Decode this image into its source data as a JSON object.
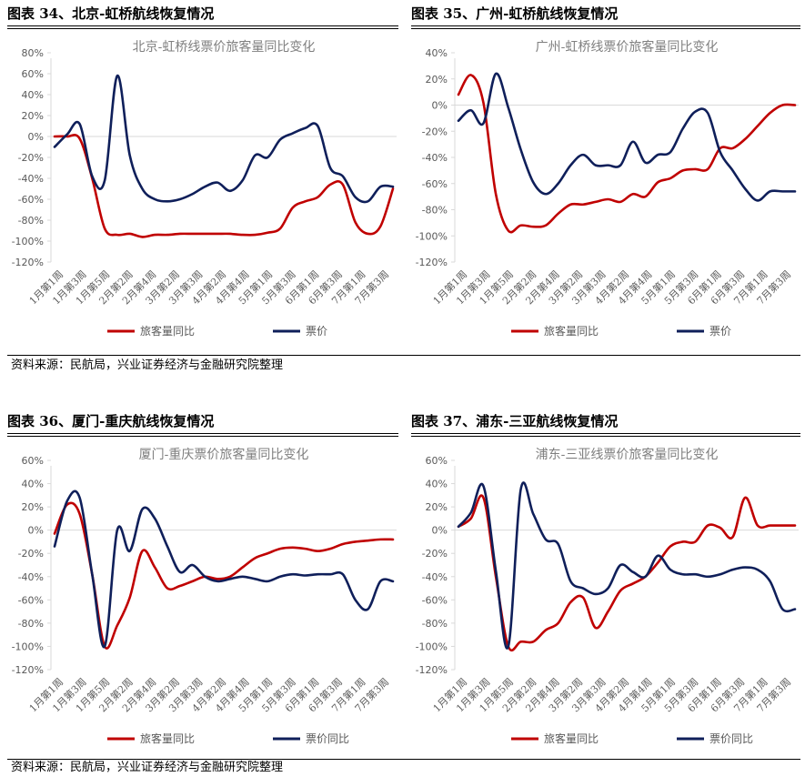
{
  "top_source": "资料来源：民航局，兴业证券经济与金融研究院整理",
  "bottom_source": "资料来源：民航局，兴业证券经济与金融研究院整理",
  "colors": {
    "passenger": "#c00000",
    "price": "#0f1f5a",
    "grid_axis": "#d9d9d9",
    "text": "#595959"
  },
  "panels": [
    {
      "header": "图表 34、北京-虹桥航线恢复情况",
      "legend_labels": [
        "旅客量同比",
        "票价"
      ],
      "chart_data": {
        "type": "line",
        "title": "北京-虹桥线票价旅客量同比变化",
        "categories": [
          "1月第1周",
          "1月第2周",
          "1月第3周",
          "1月第4周",
          "1月第5周",
          "2月第1周",
          "2月第2周",
          "2月第3周",
          "2月第4周",
          "3月第1周",
          "3月第2周",
          "3月第3周",
          "3月第4周",
          "4月第1周",
          "4月第2周",
          "4月第3周",
          "4月第4周",
          "5月第1周",
          "5月第2周",
          "5月第3周",
          "5月第4周",
          "6月第1周",
          "6月第2周",
          "6月第3周",
          "6月第4周",
          "7月第1周",
          "7月第2周",
          "7月第3周"
        ],
        "tick_labels": [
          "1月第1周",
          "1月第3周",
          "1月第5周",
          "2月第2周",
          "2月第4周",
          "3月第2周",
          "3月第3周",
          "4月第2周",
          "4月第4周",
          "5月第1周",
          "5月第3周",
          "6月第1周",
          "6月第3周",
          "7月第1周",
          "7月第3周"
        ],
        "ylim": [
          -120,
          80
        ],
        "yticks": [
          80,
          60,
          40,
          20,
          0,
          -20,
          -40,
          -60,
          -80,
          -100,
          -120
        ],
        "series": [
          {
            "name": "旅客量同比",
            "values": [
              0,
              0,
              -2,
              -40,
              -88,
              -94,
              -93,
              -96,
              -94,
              -94,
              -93,
              -93,
              -93,
              -93,
              -93,
              -94,
              -94,
              -92,
              -88,
              -68,
              -62,
              -58,
              -46,
              -46,
              -82,
              -93,
              -86,
              -50
            ]
          },
          {
            "name": "票价",
            "values": [
              -10,
              2,
              12,
              -38,
              -42,
              58,
              -18,
              -50,
              -60,
              -62,
              -60,
              -55,
              -48,
              -44,
              -52,
              -42,
              -18,
              -20,
              -3,
              3,
              8,
              10,
              -30,
              -38,
              -58,
              -62,
              -48,
              -48
            ]
          }
        ]
      }
    },
    {
      "header": "图表 35、广州-虹桥航线恢复情况",
      "legend_labels": [
        "旅客量同比",
        "票价"
      ],
      "chart_data": {
        "type": "line",
        "title": "广州-虹桥线票价旅客量同比变化",
        "categories": [
          "1月第1周",
          "1月第2周",
          "1月第3周",
          "1月第4周",
          "1月第5周",
          "2月第1周",
          "2月第2周",
          "2月第3周",
          "2月第4周",
          "3月第1周",
          "3月第2周",
          "3月第3周",
          "3月第4周",
          "4月第1周",
          "4月第2周",
          "4月第3周",
          "4月第4周",
          "5月第1周",
          "5月第2周",
          "5月第3周",
          "5月第4周",
          "6月第1周",
          "6月第2周",
          "6月第3周",
          "6月第4周",
          "7月第1周",
          "7月第2周",
          "7月第3周"
        ],
        "tick_labels": [
          "1月第1周",
          "1月第3周",
          "1月第5周",
          "2月第2周",
          "2月第4周",
          "3月第2周",
          "3月第3周",
          "4月第2周",
          "4月第4周",
          "5月第1周",
          "5月第3周",
          "6月第1周",
          "6月第3周",
          "7月第1周",
          "7月第3周"
        ],
        "ylim": [
          -120,
          40
        ],
        "yticks": [
          40,
          20,
          0,
          -20,
          -40,
          -60,
          -80,
          -100,
          -120
        ],
        "series": [
          {
            "name": "旅客量同比",
            "values": [
              8,
              23,
              2,
              -68,
              -96,
              -92,
              -93,
              -92,
              -83,
              -76,
              -76,
              -74,
              -72,
              -74,
              -68,
              -70,
              -59,
              -56,
              -50,
              -49,
              -49,
              -33,
              -33,
              -26,
              -16,
              -6,
              0,
              0
            ]
          },
          {
            "name": "票价",
            "values": [
              -12,
              -4,
              -14,
              24,
              -2,
              -34,
              -59,
              -68,
              -60,
              -46,
              -38,
              -46,
              -46,
              -46,
              -28,
              -44,
              -38,
              -36,
              -18,
              -5,
              -6,
              -36,
              -50,
              -64,
              -73,
              -66,
              -66,
              -66
            ]
          }
        ]
      }
    },
    {
      "header": "图表 36、厦门-重庆航线恢复情况",
      "legend_labels": [
        "旅客量同比",
        "票价同比"
      ],
      "chart_data": {
        "type": "line",
        "title": "厦门-重庆票价旅客量同比变化",
        "categories": [
          "1月第1周",
          "1月第2周",
          "1月第3周",
          "1月第4周",
          "1月第5周",
          "2月第1周",
          "2月第2周",
          "2月第3周",
          "2月第4周",
          "3月第1周",
          "3月第2周",
          "3月第3周",
          "3月第4周",
          "4月第1周",
          "4月第2周",
          "4月第3周",
          "4月第4周",
          "5月第1周",
          "5月第2周",
          "5月第3周",
          "5月第4周",
          "6月第1周",
          "6月第2周",
          "6月第3周",
          "6月第4周",
          "7月第1周",
          "7月第2周",
          "7月第3周"
        ],
        "tick_labels": [
          "1月第1周",
          "1月第3周",
          "1月第5周",
          "2月第2周",
          "2月第4周",
          "3月第2周",
          "3月第3周",
          "4月第2周",
          "4月第4周",
          "5月第1周",
          "5月第3周",
          "6月第1周",
          "6月第3周",
          "7月第1周",
          "7月第3周"
        ],
        "ylim": [
          -120,
          60
        ],
        "yticks": [
          60,
          40,
          20,
          0,
          -20,
          -40,
          -60,
          -80,
          -100,
          -120
        ],
        "series": [
          {
            "name": "旅客量同比",
            "values": [
              -3,
              22,
              14,
              -38,
              -100,
              -82,
              -58,
              -18,
              -32,
              -50,
              -48,
              -44,
              -40,
              -42,
              -40,
              -32,
              -24,
              -20,
              -16,
              -15,
              -16,
              -18,
              -16,
              -12,
              -10,
              -9,
              -8,
              -8
            ]
          },
          {
            "name": "票价同比",
            "values": [
              -14,
              25,
              28,
              -38,
              -100,
              0,
              -18,
              18,
              10,
              -14,
              -36,
              -30,
              -40,
              -44,
              -42,
              -40,
              -42,
              -44,
              -40,
              -38,
              -39,
              -38,
              -38,
              -38,
              -60,
              -68,
              -44,
              -44
            ]
          }
        ]
      }
    },
    {
      "header": "图表 37、浦东-三亚航线恢复情况",
      "legend_labels": [
        "旅客量同比",
        "票价同比"
      ],
      "chart_data": {
        "type": "line",
        "title": "浦东-三亚线票价旅客量同比变化",
        "categories": [
          "1月第1周",
          "1月第2周",
          "1月第3周",
          "1月第4周",
          "1月第5周",
          "2月第1周",
          "2月第2周",
          "2月第3周",
          "2月第4周",
          "3月第1周",
          "3月第2周",
          "3月第3周",
          "3月第4周",
          "4月第1周",
          "4月第2周",
          "4月第3周",
          "4月第4周",
          "5月第1周",
          "5月第2周",
          "5月第3周",
          "5月第4周",
          "6月第1周",
          "6月第2周",
          "6月第3周",
          "6月第4周",
          "7月第1周",
          "7月第2周",
          "7月第3周"
        ],
        "tick_labels": [
          "1月第1周",
          "1月第3周",
          "1月第5周",
          "2月第2周",
          "2月第4周",
          "3月第2周",
          "3月第3周",
          "4月第2周",
          "4月第4周",
          "5月第1周",
          "5月第3周",
          "6月第1周",
          "6月第3周",
          "7月第1周",
          "7月第3周"
        ],
        "ylim": [
          -120,
          60
        ],
        "yticks": [
          60,
          40,
          20,
          0,
          -20,
          -40,
          -60,
          -80,
          -100,
          -120
        ],
        "series": [
          {
            "name": "旅客量同比",
            "values": [
              3,
              10,
              28,
              -40,
              -100,
              -96,
              -96,
              -86,
              -80,
              -62,
              -58,
              -84,
              -70,
              -52,
              -46,
              -40,
              -28,
              -14,
              -10,
              -10,
              4,
              2,
              -6,
              28,
              4,
              4,
              4,
              4
            ]
          },
          {
            "name": "票价同比",
            "values": [
              3,
              15,
              38,
              -35,
              -100,
              35,
              14,
              -8,
              -12,
              -44,
              -50,
              -55,
              -50,
              -30,
              -36,
              -40,
              -22,
              -34,
              -38,
              -38,
              -40,
              -38,
              -34,
              -32,
              -34,
              -44,
              -68,
              -68
            ]
          }
        ]
      }
    }
  ]
}
